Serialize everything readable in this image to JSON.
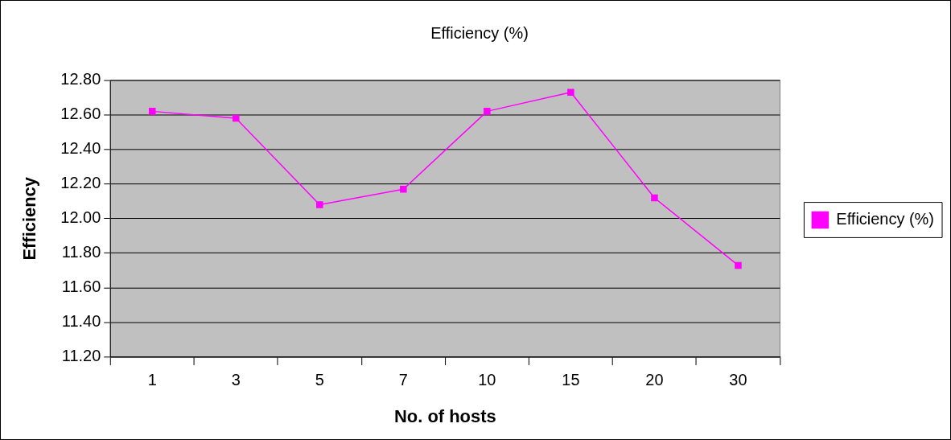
{
  "chart_data": {
    "type": "line",
    "title": "Efficiency (%)",
    "xlabel": "No. of hosts",
    "ylabel": "Efficiency",
    "categories": [
      "1",
      "3",
      "5",
      "7",
      "10",
      "15",
      "20",
      "30"
    ],
    "series": [
      {
        "name": "Efficiency (%)",
        "color": "#ff00ff",
        "values": [
          12.62,
          12.58,
          12.08,
          12.17,
          12.62,
          12.73,
          12.12,
          11.73
        ]
      }
    ],
    "ylim": [
      11.2,
      12.8
    ],
    "yticks": [
      {
        "value": 11.2,
        "label": "11.20"
      },
      {
        "value": 11.4,
        "label": "11.40"
      },
      {
        "value": 11.6,
        "label": "11.60"
      },
      {
        "value": 11.8,
        "label": "11.80"
      },
      {
        "value": 12.0,
        "label": "12.00"
      },
      {
        "value": 12.2,
        "label": "12.20"
      },
      {
        "value": 12.4,
        "label": "12.40"
      },
      {
        "value": 12.6,
        "label": "12.60"
      },
      {
        "value": 12.8,
        "label": "12.80"
      }
    ],
    "grid": "y",
    "legend": "right",
    "marker": "square",
    "line_style": "solid"
  }
}
